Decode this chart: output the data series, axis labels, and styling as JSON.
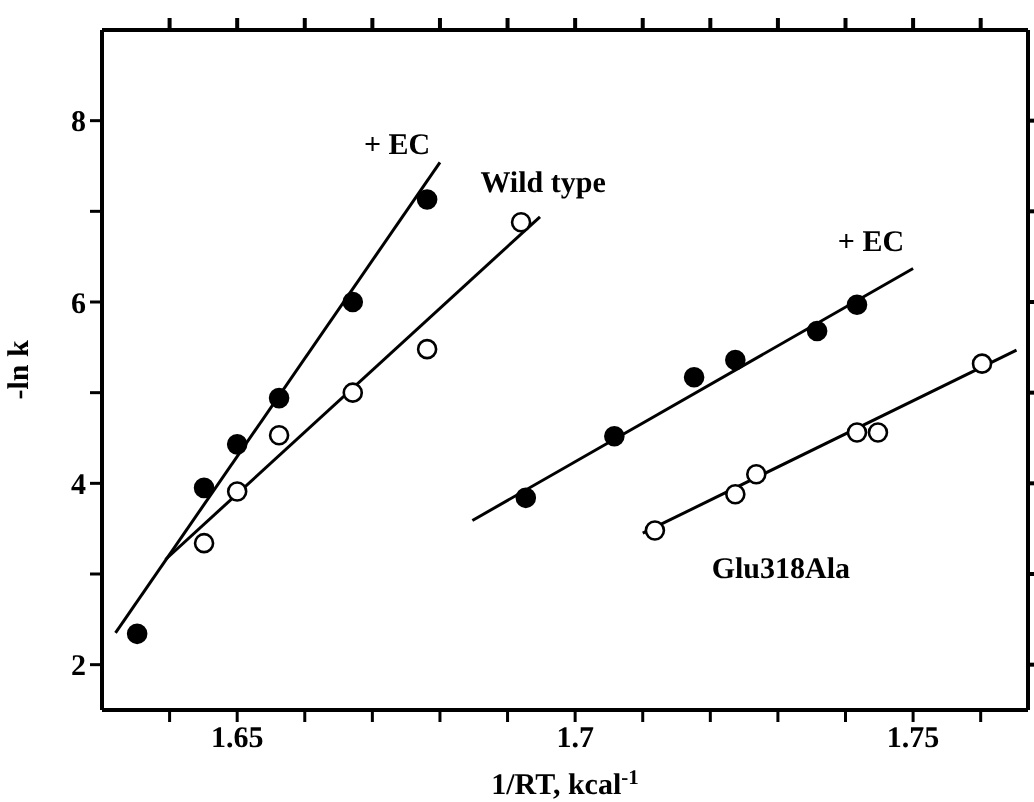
{
  "chart_data": {
    "type": "scatter",
    "xlabel": "1/RT, kcal$^{-1}$",
    "ylabel": "-ln k",
    "xlim": [
      1.63,
      1.767
    ],
    "ylim": [
      1.5,
      9
    ],
    "xticks": [
      {
        "value": 1.64,
        "label": null
      },
      1.65,
      {
        "value": 1.66,
        "label": null
      },
      {
        "value": 1.67,
        "label": null
      },
      {
        "value": 1.68,
        "label": null
      },
      {
        "value": 1.69,
        "label": null
      },
      {
        "value": 1.7,
        "label": "1.7"
      },
      {
        "value": 1.71,
        "label": null
      },
      {
        "value": 1.72,
        "label": null
      },
      {
        "value": 1.73,
        "label": null
      },
      {
        "value": 1.74,
        "label": null
      },
      1.75,
      {
        "value": 1.76,
        "label": null
      }
    ],
    "yticks": [
      2,
      {
        "value": 3,
        "label": null
      },
      4,
      {
        "value": 5,
        "label": null
      },
      6,
      {
        "value": 7,
        "label": null
      },
      8
    ],
    "legend": false,
    "series": [
      {
        "type": "scatter",
        "name": "+ EC",
        "marker": "circle",
        "color": "#000000",
        "x": [
          1.6352,
          1.6451,
          1.65,
          1.6562,
          1.6671,
          1.6781
        ],
        "values": [
          2.34,
          3.95,
          4.43,
          4.94,
          6.0,
          7.13
        ]
      },
      {
        "type": "scatter",
        "name": "Wild type",
        "marker": "circle",
        "color": "#ffffff",
        "x": [
          1.6451,
          1.65,
          1.6562,
          1.6671,
          1.6781,
          1.692
        ],
        "values": [
          3.34,
          3.91,
          4.53,
          5.0,
          5.48,
          6.88
        ]
      },
      {
        "type": "scatter",
        "name": "+ EC",
        "marker": "circle",
        "color": "#000000",
        "x": [
          1.6927,
          1.7058,
          1.7176,
          1.7237,
          1.7358,
          1.7417
        ],
        "values": [
          3.84,
          4.52,
          5.17,
          5.36,
          5.68,
          5.97
        ]
      },
      {
        "type": "scatter",
        "name": "Glu318Ala",
        "marker": "circle",
        "color": "#ffffff",
        "x": [
          1.7118,
          1.7237,
          1.7268,
          1.7417,
          1.7448,
          1.7602
        ],
        "values": [
          3.48,
          3.88,
          4.1,
          4.56,
          4.56,
          5.32
        ]
      },
      {
        "type": "line",
        "marker": "none",
        "color": "#000000",
        "x": [
          1.632,
          1.68
        ],
        "values": [
          2.35,
          7.54
        ]
      },
      {
        "type": "line",
        "marker": "none",
        "color": "#000000",
        "x": [
          1.6394,
          1.6948
        ],
        "values": [
          3.16,
          6.94
        ]
      },
      {
        "type": "line",
        "marker": "none",
        "color": "#000000",
        "x": [
          1.6848,
          1.75
        ],
        "values": [
          3.59,
          6.37
        ]
      },
      {
        "type": "line",
        "marker": "none",
        "color": "#000000",
        "x": [
          1.71,
          1.7653
        ],
        "values": [
          3.45,
          5.47
        ]
      }
    ]
  }
}
